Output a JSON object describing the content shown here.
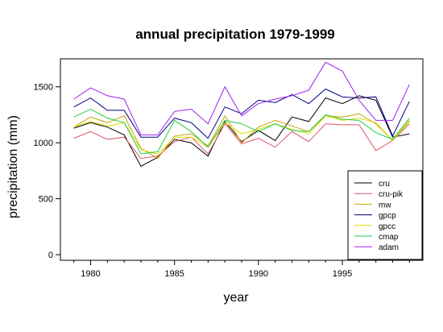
{
  "chart_data": {
    "type": "line",
    "title": "annual precipitation 1979-1999",
    "xlabel": "year",
    "ylabel": "precipitation (mm)",
    "xlim": [
      1978.2,
      1999.8
    ],
    "ylim": [
      -50,
      1750
    ],
    "x_ticks": [
      1980,
      1985,
      1990,
      1995
    ],
    "y_ticks": [
      0,
      500,
      1000,
      1500
    ],
    "grid": false,
    "legend_position": "bottom-right",
    "x": [
      1979,
      1980,
      1981,
      1982,
      1983,
      1984,
      1985,
      1986,
      1987,
      1988,
      1989,
      1990,
      1991,
      1992,
      1993,
      1994,
      1995,
      1996,
      1997,
      1998,
      1999
    ],
    "series": [
      {
        "name": "cru",
        "color": "#000000",
        "values": [
          1130,
          1180,
          1140,
          1070,
          790,
          870,
          1030,
          1000,
          880,
          1190,
          1010,
          1110,
          1020,
          1230,
          1190,
          1400,
          1350,
          1420,
          1380,
          1050,
          1080
        ]
      },
      {
        "name": "cru-pik",
        "color": "#df536b",
        "values": [
          1040,
          1100,
          1030,
          1050,
          860,
          880,
          1010,
          1050,
          900,
          1170,
          990,
          1040,
          960,
          1100,
          1010,
          1170,
          1160,
          1160,
          930,
          1020,
          1170
        ]
      },
      {
        "name": "mw",
        "color": "#c6a400",
        "values": [
          1140,
          1230,
          1180,
          1240,
          950,
          860,
          1060,
          1080,
          970,
          1240,
          1000,
          1140,
          1200,
          1150,
          1100,
          1240,
          1230,
          1260,
          1170,
          1020,
          1200
        ]
      },
      {
        "name": "gpcp",
        "color": "#000080",
        "values": [
          1320,
          1400,
          1290,
          1290,
          1050,
          1050,
          1220,
          1180,
          1040,
          1320,
          1260,
          1380,
          1360,
          1430,
          1350,
          1480,
          1410,
          1400,
          1410,
          1060,
          1370
        ]
      },
      {
        "name": "gpcc",
        "color": "#dddd00",
        "values": [
          1140,
          1190,
          1150,
          1180,
          940,
          900,
          1050,
          1050,
          960,
          1180,
          1080,
          1120,
          1170,
          1120,
          1080,
          1240,
          1200,
          1220,
          1180,
          1020,
          1190
        ]
      },
      {
        "name": "cmap",
        "color": "#22cc44",
        "values": [
          1230,
          1300,
          1220,
          1180,
          900,
          920,
          1200,
          1100,
          960,
          1200,
          1170,
          1100,
          1170,
          1110,
          1100,
          1250,
          1210,
          1200,
          1090,
          1030,
          1220
        ]
      },
      {
        "name": "adam",
        "color": "#a020f0",
        "values": [
          1390,
          1490,
          1420,
          1390,
          1070,
          1070,
          1280,
          1300,
          1170,
          1500,
          1240,
          1350,
          1390,
          1420,
          1470,
          1720,
          1640,
          1380,
          1200,
          1200,
          1520
        ]
      }
    ]
  }
}
